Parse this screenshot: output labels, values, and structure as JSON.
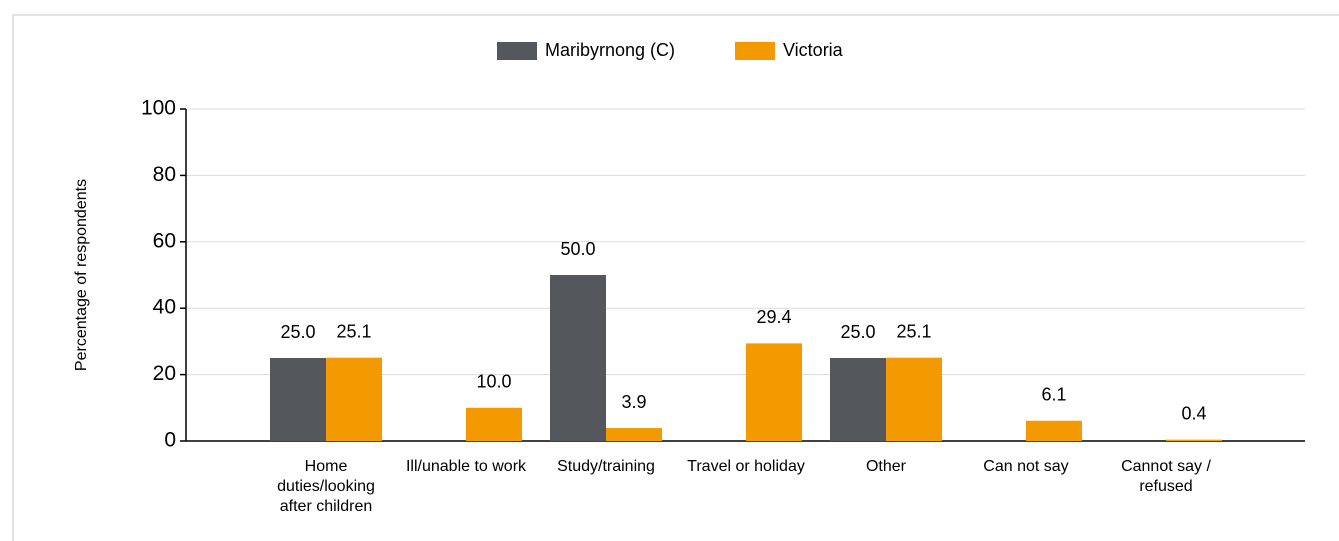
{
  "chart_data": {
    "type": "bar",
    "y_label": "Percentage of respondents",
    "categories": [
      "Home duties/looking after children",
      "Ill/unable to work",
      "Study/training",
      "Travel or holiday",
      "Other",
      "Can not say",
      "Cannot say / refused"
    ],
    "series": [
      {
        "name": "Maribyrnong (C)",
        "color": "#54575b",
        "values": [
          25,
          null,
          50,
          null,
          25,
          null,
          null
        ],
        "value_labels": [
          "25.0",
          null,
          "50.0",
          null,
          "25.0",
          null,
          null
        ]
      },
      {
        "name": "Victoria",
        "color": "#f29a00",
        "values": [
          25.1,
          10,
          3.9,
          29.4,
          25.1,
          6.1,
          0.4
        ],
        "value_labels": [
          "25.1",
          "10.0",
          "3.9",
          "29.4",
          "25.1",
          "6.1",
          "0.4"
        ]
      }
    ],
    "ylim": [
      0,
      100
    ],
    "yticks": [
      0,
      20,
      40,
      60,
      80,
      100
    ],
    "grid": true,
    "legend": "top"
  }
}
